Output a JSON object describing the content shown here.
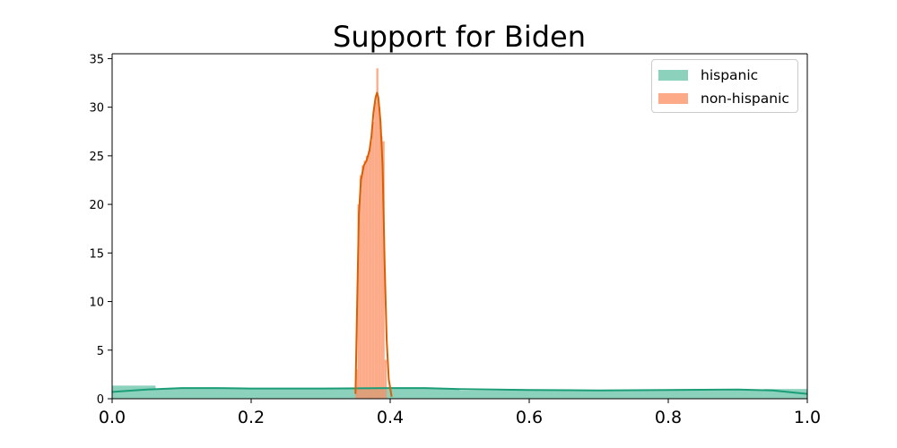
{
  "chart_data": {
    "type": "histogram",
    "title": "Support for Biden",
    "xlabel": "",
    "ylabel": "",
    "xlim": [
      0.0,
      1.0
    ],
    "ylim": [
      0,
      35.5
    ],
    "x_ticks": [
      "0.0",
      "0.2",
      "0.4",
      "0.6",
      "0.8",
      "1.0"
    ],
    "y_ticks": [
      "0",
      "5",
      "10",
      "15",
      "20",
      "25",
      "30",
      "35"
    ],
    "legend_position": "top-right",
    "grid": false,
    "series": [
      {
        "name": "hispanic",
        "fill_color": "#66c2a5",
        "line_color": "#1b9e77",
        "bins": [
          {
            "x0": 0.0,
            "x1": 0.0625,
            "count": 1.35
          },
          {
            "x0": 0.0625,
            "x1": 0.5,
            "count": 1.05
          },
          {
            "x0": 0.5,
            "x1": 0.9375,
            "count": 0.85
          },
          {
            "x0": 0.9375,
            "x1": 1.0,
            "count": 1.0
          }
        ],
        "kde": [
          {
            "x": 0.0,
            "y": 0.7
          },
          {
            "x": 0.05,
            "y": 0.95
          },
          {
            "x": 0.1,
            "y": 1.1
          },
          {
            "x": 0.15,
            "y": 1.1
          },
          {
            "x": 0.2,
            "y": 1.05
          },
          {
            "x": 0.3,
            "y": 1.05
          },
          {
            "x": 0.4,
            "y": 1.1
          },
          {
            "x": 0.45,
            "y": 1.1
          },
          {
            "x": 0.5,
            "y": 1.0
          },
          {
            "x": 0.6,
            "y": 0.9
          },
          {
            "x": 0.7,
            "y": 0.85
          },
          {
            "x": 0.8,
            "y": 0.9
          },
          {
            "x": 0.9,
            "y": 0.95
          },
          {
            "x": 0.95,
            "y": 0.85
          },
          {
            "x": 1.0,
            "y": 0.5
          }
        ]
      },
      {
        "name": "non-hispanic",
        "fill_color": "#fc8d62",
        "line_color": "#d95f02",
        "bins": [
          {
            "x0": 0.35,
            "x1": 0.353,
            "count": 3.0
          },
          {
            "x0": 0.353,
            "x1": 0.356,
            "count": 20.0
          },
          {
            "x0": 0.356,
            "x1": 0.359,
            "count": 23.0
          },
          {
            "x0": 0.359,
            "x1": 0.362,
            "count": 24.0
          },
          {
            "x0": 0.362,
            "x1": 0.365,
            "count": 24.5
          },
          {
            "x0": 0.365,
            "x1": 0.368,
            "count": 25.0
          },
          {
            "x0": 0.368,
            "x1": 0.371,
            "count": 25.5
          },
          {
            "x0": 0.371,
            "x1": 0.374,
            "count": 26.5
          },
          {
            "x0": 0.374,
            "x1": 0.377,
            "count": 28.5
          },
          {
            "x0": 0.377,
            "x1": 0.38,
            "count": 30.5
          },
          {
            "x0": 0.38,
            "x1": 0.383,
            "count": 34.0
          },
          {
            "x0": 0.383,
            "x1": 0.386,
            "count": 30.0
          },
          {
            "x0": 0.386,
            "x1": 0.389,
            "count": 27.0
          },
          {
            "x0": 0.389,
            "x1": 0.392,
            "count": 26.5
          },
          {
            "x0": 0.392,
            "x1": 0.395,
            "count": 4.0
          }
        ],
        "kde": [
          {
            "x": 0.35,
            "y": 0.5
          },
          {
            "x": 0.352,
            "y": 8.0
          },
          {
            "x": 0.355,
            "y": 19.0
          },
          {
            "x": 0.358,
            "y": 22.5
          },
          {
            "x": 0.362,
            "y": 24.0
          },
          {
            "x": 0.366,
            "y": 24.5
          },
          {
            "x": 0.37,
            "y": 25.5
          },
          {
            "x": 0.373,
            "y": 27.0
          },
          {
            "x": 0.376,
            "y": 29.5
          },
          {
            "x": 0.379,
            "y": 31.0
          },
          {
            "x": 0.381,
            "y": 31.5
          },
          {
            "x": 0.383,
            "y": 31.0
          },
          {
            "x": 0.386,
            "y": 28.5
          },
          {
            "x": 0.389,
            "y": 24.0
          },
          {
            "x": 0.392,
            "y": 14.0
          },
          {
            "x": 0.395,
            "y": 6.0
          },
          {
            "x": 0.398,
            "y": 2.0
          },
          {
            "x": 0.402,
            "y": 0.2
          }
        ]
      }
    ]
  }
}
